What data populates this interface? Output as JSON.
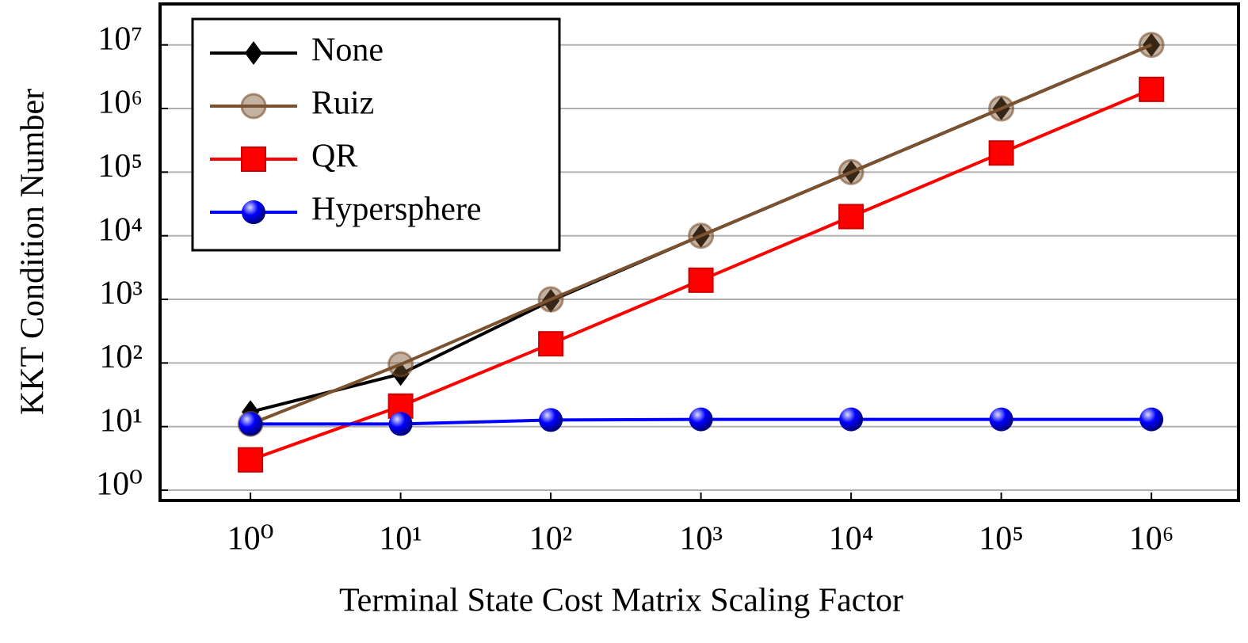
{
  "chart_data": {
    "type": "line",
    "x_label": "Terminal State Cost Matrix Scaling Factor",
    "y_label": "KKT Condition Number",
    "x": [
      1,
      10,
      100,
      1000,
      10000,
      100000,
      1000000
    ],
    "series": [
      {
        "name": "None",
        "color": "#000000",
        "marker": "diamond",
        "values": [
          17,
          67,
          950,
          10000,
          100000,
          1000000,
          10000000
        ]
      },
      {
        "name": "Ruiz",
        "color": "#7b5230",
        "marker": "circle",
        "values": [
          11,
          95,
          1000,
          10000,
          100000,
          1000000,
          10000000
        ]
      },
      {
        "name": "QR",
        "color": "#ff0000",
        "marker": "square",
        "values": [
          3,
          21,
          200,
          2000,
          20000,
          200000,
          2000000
        ]
      },
      {
        "name": "Hypersphere",
        "color": "#0000ff",
        "marker": "ball",
        "values": [
          11,
          11,
          12.7,
          13,
          13,
          13,
          13
        ]
      }
    ],
    "xscale": "log",
    "yscale": "log",
    "xlim": [
      0.25,
      3800000
    ],
    "ylim": [
      0.69,
      44000000
    ],
    "xticks": [
      {
        "value": 1,
        "label": "10⁰"
      },
      {
        "value": 10,
        "label": "10¹"
      },
      {
        "value": 100,
        "label": "10²"
      },
      {
        "value": 1000,
        "label": "10³"
      },
      {
        "value": 10000,
        "label": "10⁴"
      },
      {
        "value": 100000,
        "label": "10⁵"
      },
      {
        "value": 1000000,
        "label": "10⁶"
      }
    ],
    "yticks": [
      {
        "value": 1,
        "label": "10⁰"
      },
      {
        "value": 10,
        "label": "10¹"
      },
      {
        "value": 100,
        "label": "10²"
      },
      {
        "value": 1000,
        "label": "10³"
      },
      {
        "value": 10000,
        "label": "10⁴"
      },
      {
        "value": 100000,
        "label": "10⁵"
      },
      {
        "value": 1000000,
        "label": "10⁶"
      },
      {
        "value": 10000000,
        "label": "10⁷"
      }
    ],
    "grid": "y",
    "legend": "upper left"
  }
}
